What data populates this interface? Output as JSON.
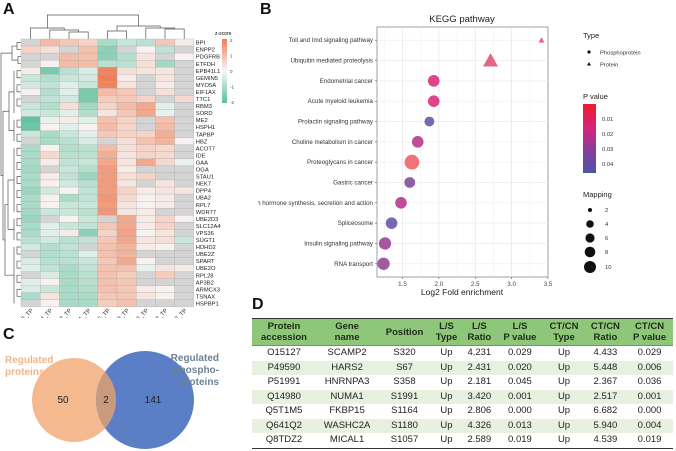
{
  "panels": {
    "a": "A",
    "b": "B",
    "c": "C",
    "d": "D"
  },
  "heatmap": {
    "type": "heatmap",
    "legend_title": "z-score",
    "legend_ticks": [
      "2",
      "1",
      "0",
      "-1",
      "-2"
    ],
    "colors": {
      "high": "#f07e56",
      "mid": "#f7f7f7",
      "low": "#5dbf9b",
      "na": "#d4d4d4"
    },
    "columns": [
      "C3_TP",
      "C4_TP",
      "C13_TP",
      "C1_TP",
      "C5_TP",
      "C9_TP",
      "C8_TP",
      "C12_TP",
      "C2_TP"
    ],
    "rows": [
      "BPI",
      "ENPP2",
      "PDGFRB",
      "ETFDH",
      "EPB41L1",
      "GEMIN5",
      "MYO5A",
      "EIF1AX",
      "TTC1",
      "RBM3",
      "SORD",
      "ME2",
      "HSPH1",
      "TAPBP",
      "HBZ",
      "ACOT7",
      "IDE",
      "GAA",
      "OGA",
      "STAU1",
      "NEK7",
      "DPP4",
      "UBA2",
      "RPL7",
      "WDR77",
      "UBE2D3",
      "SLC12A4",
      "VPS36",
      "SUGT1",
      "HDHD2",
      "UBE2Z",
      "SPART",
      "UBE2O",
      "RPL28",
      "AP3B2",
      "ARMCX3",
      "TSNAX",
      "HSPBP1"
    ],
    "values": [
      [
        null,
        1.0,
        0.8,
        0.6,
        -1.0,
        -0.6,
        -0.8,
        0.8,
        0.2
      ],
      [
        0.6,
        0.4,
        null,
        0.9,
        -1.4,
        null,
        0.1,
        -0.7,
        null
      ],
      [
        null,
        null,
        1.0,
        0.9,
        -1.4,
        -0.9,
        0.3,
        null,
        0.1
      ],
      [
        null,
        0.1,
        1.0,
        1.0,
        -0.8,
        -0.8,
        0.4,
        -1.1,
        null
      ],
      [
        0.2,
        -1.6,
        -0.8,
        -0.4,
        1.9,
        0.4,
        0.3,
        0.3,
        null
      ],
      [
        -0.6,
        -0.9,
        -0.6,
        -0.5,
        2.0,
        0.2,
        null,
        0.3,
        null
      ],
      [
        -0.5,
        -0.7,
        -0.3,
        -0.6,
        1.9,
        0.3,
        null,
        0.2,
        null
      ],
      [
        0.1,
        -0.9,
        -0.3,
        -1.6,
        1.0,
        0.8,
        null,
        0.4,
        null
      ],
      [
        null,
        -0.7,
        -0.5,
        -1.6,
        0.7,
        0.8,
        0.6,
        null,
        0.5
      ],
      [
        -0.6,
        -0.9,
        0.4,
        -1.1,
        0.6,
        1.0,
        1.3,
        -0.3,
        null
      ],
      [
        -0.5,
        -0.6,
        -0.3,
        -0.9,
        0.3,
        0.8,
        1.3,
        -0.2,
        null
      ],
      [
        -1.9,
        -0.2,
        0.2,
        -0.3,
        0.9,
        0.6,
        null,
        0.9,
        null
      ],
      [
        -1.8,
        0.1,
        -0.3,
        0.1,
        1.0,
        0.6,
        null,
        1.0,
        null
      ],
      [
        -0.6,
        -1.0,
        -0.6,
        -0.3,
        0.8,
        0.6,
        0.6,
        1.2,
        null
      ],
      [
        null,
        -1.0,
        -0.8,
        -0.4,
        null,
        0.4,
        0.9,
        1.1,
        0.1
      ],
      [
        -1.0,
        0.1,
        -0.9,
        -0.8,
        1.0,
        0.4,
        0.6,
        0.5,
        null
      ],
      [
        -1.0,
        0.5,
        -0.8,
        -0.8,
        1.2,
        0.3,
        0.6,
        0.5,
        null
      ],
      [
        -1.0,
        0.2,
        -0.7,
        -0.6,
        1.3,
        0.3,
        1.3,
        0.5,
        -0.2
      ],
      [
        -1.1,
        null,
        -0.6,
        -0.9,
        1.5,
        0.2,
        null,
        null,
        null
      ],
      [
        -1.0,
        0.2,
        -0.7,
        -1.2,
        1.5,
        0.4,
        0.6,
        null,
        null
      ],
      [
        -1.0,
        0.1,
        -0.5,
        -0.8,
        1.5,
        0.3,
        null,
        0.3,
        null
      ],
      [
        -1.2,
        -0.5,
        0.1,
        -0.7,
        1.5,
        0.6,
        0.2,
        0.3,
        0.3
      ],
      [
        -1.0,
        0.1,
        -1.0,
        -0.7,
        1.6,
        0.5,
        0.1,
        0.2,
        null
      ],
      [
        -1.0,
        0.1,
        -0.6,
        -0.6,
        1.5,
        0.3,
        0.1,
        0.2,
        null
      ],
      [
        -1.1,
        -0.6,
        -0.6,
        -0.8,
        1.6,
        0.3,
        0.2,
        null,
        null
      ],
      [
        -1.2,
        null,
        0.1,
        -0.6,
        null,
        1.3,
        0.2,
        0.6,
        0.1
      ],
      [
        -1.0,
        -0.3,
        -0.6,
        -0.7,
        0.8,
        1.3,
        0.2,
        0.6,
        null
      ],
      [
        -1.0,
        -0.3,
        0.2,
        -1.4,
        0.6,
        1.4,
        0.1,
        0.3,
        null
      ],
      [
        -0.8,
        -0.5,
        -0.8,
        -0.7,
        0.8,
        1.3,
        0.3,
        0.4,
        -0.6
      ],
      [
        -0.5,
        -0.9,
        -0.7,
        null,
        0.9,
        1.1,
        0.2,
        0.1,
        null
      ],
      [
        null,
        -0.9,
        -0.8,
        -0.3,
        0.9,
        1.1,
        null,
        null,
        null
      ],
      [
        -0.4,
        -0.8,
        -0.8,
        -0.6,
        0.8,
        1.3,
        0.1,
        null,
        null
      ],
      [
        -0.3,
        -0.7,
        -1.0,
        -0.7,
        0.9,
        0.9,
        -0.2,
        0.3,
        0.2
      ],
      [
        null,
        -0.4,
        -1.0,
        -0.8,
        0.9,
        0.7,
        null,
        0.7,
        null
      ],
      [
        -0.3,
        0.1,
        -1.0,
        -0.8,
        0.9,
        0.8,
        null,
        null,
        null
      ],
      [
        -0.4,
        -0.6,
        -1.0,
        -0.9,
        0.9,
        0.8,
        0.2,
        0.1,
        null
      ],
      [
        -1.0,
        0.3,
        -1.0,
        -1.0,
        0.8,
        0.8,
        0.3,
        0.1,
        null
      ],
      [
        null,
        0.1,
        -1.0,
        -1.0,
        0.7,
        0.9,
        null,
        null,
        null
      ]
    ]
  },
  "kegg": {
    "type": "scatter",
    "title": "KEGG pathway",
    "xlabel": "Log2 Fold enrichment",
    "xlim": [
      1.15,
      3.5
    ],
    "xticks": [
      "1.5",
      "2.0",
      "2.5",
      "3.0",
      "3.5"
    ],
    "grid": true,
    "points": [
      {
        "pathway": "Toll and Imd signaling pathway",
        "x": 3.41,
        "pvalue": 0.012,
        "mapping": 1,
        "type": "Protein"
      },
      {
        "pathway": "Ubiquitin mediated proteolysis",
        "x": 2.71,
        "pvalue": 0.012,
        "mapping": 8,
        "type": "Protein"
      },
      {
        "pathway": "Endometrial cancer",
        "x": 1.93,
        "pvalue": 0.017,
        "mapping": 5,
        "type": "Phosphoprotein"
      },
      {
        "pathway": "Acute myeloid leukemia",
        "x": 1.93,
        "pvalue": 0.017,
        "mapping": 5,
        "type": "Phosphoprotein"
      },
      {
        "pathway": "Prolactin signaling pathway",
        "x": 1.87,
        "pvalue": 0.04,
        "mapping": 3,
        "type": "Phosphoprotein"
      },
      {
        "pathway": "Choline metabolism in cancer",
        "x": 1.71,
        "pvalue": 0.025,
        "mapping": 5,
        "type": "Phosphoprotein"
      },
      {
        "pathway": "Proteoglycans in cancer",
        "x": 1.63,
        "pvalue": 0.002,
        "mapping": 10,
        "type": "Phosphoprotein"
      },
      {
        "pathway": "Gastric cancer",
        "x": 1.6,
        "pvalue": 0.035,
        "mapping": 4,
        "type": "Phosphoprotein"
      },
      {
        "pathway": "Growth hormone synthesis, secretion and action",
        "x": 1.48,
        "pvalue": 0.025,
        "mapping": 5,
        "type": "Phosphoprotein"
      },
      {
        "pathway": "Spliceosome",
        "x": 1.35,
        "pvalue": 0.04,
        "mapping": 5,
        "type": "Phosphoprotein"
      },
      {
        "pathway": "Insulin signaling pathway",
        "x": 1.26,
        "pvalue": 0.03,
        "mapping": 6,
        "type": "Phosphoprotein"
      },
      {
        "pathway": "RNA transport",
        "x": 1.24,
        "pvalue": 0.032,
        "mapping": 6,
        "type": "Phosphoprotein"
      }
    ],
    "legend": {
      "type_title": "Type",
      "type_items": [
        "Phosphoprotein",
        "Protein"
      ],
      "pvalue_title": "P value",
      "pvalue_ticks": [
        "0.01",
        "0.02",
        "0.03",
        "0.04"
      ],
      "pvalue_colors": {
        "low": "#e8203a",
        "high": "#4a55a8"
      },
      "mapping_title": "Mapping",
      "mapping_ticks": [
        "2",
        "4",
        "6",
        "8",
        "10"
      ]
    }
  },
  "venn": {
    "left_label": [
      "Regulated",
      "proteins"
    ],
    "right_label": [
      "Regulated",
      "phospho-",
      "proteins"
    ],
    "left_only": "50",
    "intersection": "2",
    "right_only": "141",
    "left_color": "#f4b98f",
    "right_color": "#5b7fc6",
    "overlap_color": "#c99a80",
    "left_label_color": "#f0b48a",
    "right_label_color": "#6d8197"
  },
  "table": {
    "headers": [
      [
        "Protein",
        "accession"
      ],
      [
        "Gene",
        "name"
      ],
      [
        "Position",
        ""
      ],
      [
        "L/S",
        "Type"
      ],
      [
        "L/S",
        "Ratio"
      ],
      [
        "L/S",
        "P value"
      ],
      [
        "CT/CN",
        "Type"
      ],
      [
        "CT/CN",
        "Ratio"
      ],
      [
        "CT/CN",
        "P value"
      ]
    ],
    "rows": [
      [
        "O15127",
        "SCAMP2",
        "S320",
        "Up",
        "4.231",
        "0.029",
        "Up",
        "4.433",
        "0.029"
      ],
      [
        "P49590",
        "HARS2",
        "S67",
        "Up",
        "2.431",
        "0.020",
        "Up",
        "5.448",
        "0.006"
      ],
      [
        "P51991",
        "HNRNPA3",
        "S358",
        "Up",
        "2.181",
        "0.045",
        "Up",
        "2.367",
        "0.036"
      ],
      [
        "Q14980",
        "NUMA1",
        "S1991",
        "Up",
        "3.420",
        "0.001",
        "Up",
        "2.517",
        "0.001"
      ],
      [
        "Q5T1M5",
        "FKBP15",
        "S1164",
        "Up",
        "2.806",
        "0.000",
        "Up",
        "6.682",
        "0.000"
      ],
      [
        "Q641Q2",
        "WASHC2A",
        "S1180",
        "Up",
        "4.326",
        "0.013",
        "Up",
        "5.940",
        "0.004"
      ],
      [
        "Q8TDZ2",
        "MICAL1",
        "S1057",
        "Up",
        "2.589",
        "0.019",
        "Up",
        "4.539",
        "0.019"
      ]
    ]
  },
  "chart_data": [
    {
      "type": "heatmap",
      "title": "",
      "legend": "z-score",
      "x": [
        "C3_TP",
        "C4_TP",
        "C13_TP",
        "C1_TP",
        "C5_TP",
        "C9_TP",
        "C8_TP",
        "C12_TP",
        "C2_TP"
      ],
      "y": [
        "BPI",
        "ENPP2",
        "PDGFRB",
        "ETFDH",
        "EPB41L1",
        "GEMIN5",
        "MYO5A",
        "EIF1AX",
        "TTC1",
        "RBM3",
        "SORD",
        "ME2",
        "HSPH1",
        "TAPBP",
        "HBZ",
        "ACOT7",
        "IDE",
        "GAA",
        "OGA",
        "STAU1",
        "NEK7",
        "DPP4",
        "UBA2",
        "RPL7",
        "WDR77",
        "UBE2D3",
        "SLC12A4",
        "VPS36",
        "SUGT1",
        "HDHD2",
        "UBE2Z",
        "SPART",
        "UBE2O",
        "RPL28",
        "AP3B2",
        "ARMCX3",
        "TSNAX",
        "HSPBP1"
      ],
      "zlim": [
        -2,
        2
      ]
    },
    {
      "type": "scatter",
      "title": "KEGG pathway",
      "xlabel": "Log2 Fold enrichment",
      "xlim": [
        1.15,
        3.5
      ],
      "categories": [
        "Toll and Imd signaling pathway",
        "Ubiquitin mediated proteolysis",
        "Endometrial cancer",
        "Acute myeloid leukemia",
        "Prolactin signaling pathway",
        "Choline metabolism in cancer",
        "Proteoglycans in cancer",
        "Gastric cancer",
        "Growth hormone synthesis, secretion and action",
        "Spliceosome",
        "Insulin signaling pathway",
        "RNA transport"
      ],
      "values": [
        3.41,
        2.71,
        1.93,
        1.93,
        1.87,
        1.71,
        1.63,
        1.6,
        1.48,
        1.35,
        1.26,
        1.24
      ]
    },
    {
      "type": "venn",
      "sets": [
        "Regulated proteins",
        "Regulated phosphoproteins"
      ],
      "values": {
        "left_only": 50,
        "intersection": 2,
        "right_only": 141
      }
    },
    {
      "type": "table",
      "columns": [
        "Protein accession",
        "Gene name",
        "Position",
        "L/S Type",
        "L/S Ratio",
        "L/S P value",
        "CT/CN Type",
        "CT/CN Ratio",
        "CT/CN P value"
      ]
    }
  ]
}
